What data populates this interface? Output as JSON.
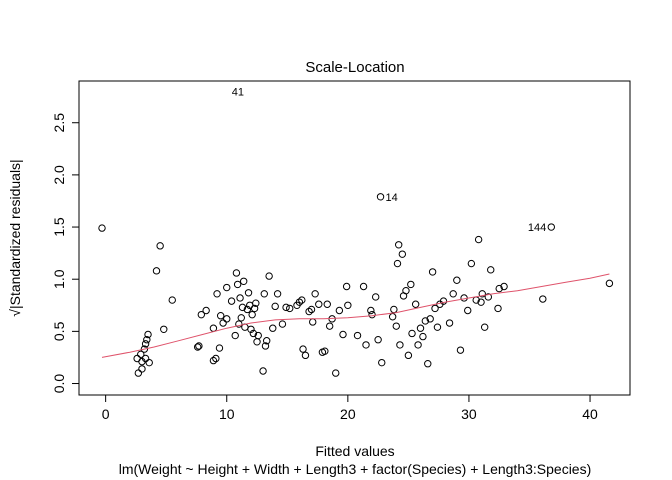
{
  "chart_data": {
    "type": "scatter",
    "title": "Scale-Location",
    "xlabel": "Fitted values",
    "ylabel": "√|Standardized residuals|",
    "subtitle": "lm(Weight ~ Height + Width + Length3 + factor(Species) + Length3:Species)",
    "xlim": [
      -2.2,
      43.3
    ],
    "ylim": [
      -0.11,
      2.9
    ],
    "xticks": [
      0,
      10,
      20,
      30,
      40
    ],
    "yticks": [
      0.0,
      0.5,
      1.0,
      1.5,
      2.0,
      2.5
    ],
    "colors": {
      "points": "#000000",
      "smooth": "#DF536B"
    },
    "points": [
      [
        -0.3,
        1.49
      ],
      [
        2.6,
        0.24
      ],
      [
        2.7,
        0.1
      ],
      [
        2.9,
        0.28
      ],
      [
        3.0,
        0.14
      ],
      [
        3.0,
        0.21
      ],
      [
        3.2,
        0.33
      ],
      [
        3.3,
        0.24
      ],
      [
        3.3,
        0.38
      ],
      [
        3.4,
        0.42
      ],
      [
        3.5,
        0.47
      ],
      [
        3.6,
        0.2
      ],
      [
        4.2,
        1.08
      ],
      [
        4.5,
        1.32
      ],
      [
        4.8,
        0.52
      ],
      [
        5.5,
        0.8
      ],
      [
        7.6,
        0.35
      ],
      [
        7.7,
        0.36
      ],
      [
        7.9,
        0.66
      ],
      [
        8.3,
        0.7
      ],
      [
        8.9,
        0.53
      ],
      [
        8.9,
        0.22
      ],
      [
        9.1,
        0.24
      ],
      [
        9.2,
        0.86
      ],
      [
        9.4,
        0.34
      ],
      [
        9.5,
        0.65
      ],
      [
        9.7,
        0.58
      ],
      [
        10.0,
        0.92
      ],
      [
        10.0,
        0.62
      ],
      [
        10.4,
        0.79
      ],
      [
        10.7,
        0.46
      ],
      [
        10.8,
        1.06
      ],
      [
        10.9,
        0.95
      ],
      [
        11.0,
        0.57
      ],
      [
        11.1,
        0.82
      ],
      [
        11.2,
        0.63
      ],
      [
        11.3,
        0.73
      ],
      [
        11.4,
        0.98
      ],
      [
        11.5,
        0.54
      ],
      [
        11.7,
        0.71
      ],
      [
        11.8,
        0.87
      ],
      [
        11.9,
        0.75
      ],
      [
        12.0,
        0.52
      ],
      [
        12.1,
        0.66
      ],
      [
        12.2,
        0.48
      ],
      [
        12.3,
        0.72
      ],
      [
        12.4,
        0.77
      ],
      [
        12.5,
        0.4
      ],
      [
        12.6,
        0.46
      ],
      [
        13.0,
        0.12
      ],
      [
        13.1,
        0.86
      ],
      [
        13.2,
        0.36
      ],
      [
        13.3,
        0.41
      ],
      [
        13.5,
        1.03
      ],
      [
        13.8,
        0.53
      ],
      [
        14.0,
        0.74
      ],
      [
        14.2,
        0.86
      ],
      [
        14.6,
        0.57
      ],
      [
        14.9,
        0.73
      ],
      [
        15.2,
        0.72
      ],
      [
        15.8,
        0.75
      ],
      [
        16.0,
        0.78
      ],
      [
        16.2,
        0.8
      ],
      [
        16.3,
        0.33
      ],
      [
        16.5,
        0.27
      ],
      [
        16.8,
        0.69
      ],
      [
        17.0,
        0.71
      ],
      [
        17.1,
        0.59
      ],
      [
        17.3,
        0.86
      ],
      [
        17.6,
        0.76
      ],
      [
        17.9,
        0.3
      ],
      [
        18.1,
        0.31
      ],
      [
        18.3,
        0.76
      ],
      [
        18.5,
        0.55
      ],
      [
        18.7,
        0.62
      ],
      [
        19.0,
        0.1
      ],
      [
        19.3,
        0.7
      ],
      [
        19.6,
        0.47
      ],
      [
        19.9,
        0.93
      ],
      [
        20.0,
        0.75
      ],
      [
        20.8,
        0.46
      ],
      [
        21.3,
        0.93
      ],
      [
        21.5,
        0.37
      ],
      [
        21.9,
        0.7
      ],
      [
        22.0,
        0.66
      ],
      [
        22.3,
        0.83
      ],
      [
        22.5,
        0.42
      ],
      [
        22.7,
        1.79
      ],
      [
        22.8,
        0.2
      ],
      [
        23.7,
        0.64
      ],
      [
        23.8,
        0.71
      ],
      [
        24.0,
        0.55
      ],
      [
        24.1,
        1.15
      ],
      [
        24.2,
        1.33
      ],
      [
        24.3,
        0.37
      ],
      [
        24.5,
        1.24
      ],
      [
        24.6,
        0.84
      ],
      [
        24.8,
        0.89
      ],
      [
        25.0,
        0.27
      ],
      [
        25.2,
        0.95
      ],
      [
        25.3,
        0.48
      ],
      [
        25.6,
        0.76
      ],
      [
        25.8,
        0.37
      ],
      [
        26.0,
        0.53
      ],
      [
        26.2,
        0.45
      ],
      [
        26.4,
        0.6
      ],
      [
        26.6,
        0.19
      ],
      [
        26.8,
        0.62
      ],
      [
        27.0,
        1.07
      ],
      [
        27.2,
        0.72
      ],
      [
        27.4,
        0.54
      ],
      [
        27.6,
        0.76
      ],
      [
        27.9,
        0.79
      ],
      [
        28.4,
        0.58
      ],
      [
        28.7,
        0.86
      ],
      [
        29.0,
        0.99
      ],
      [
        29.3,
        0.32
      ],
      [
        29.6,
        0.82
      ],
      [
        29.9,
        0.7
      ],
      [
        30.2,
        1.15
      ],
      [
        30.6,
        0.8
      ],
      [
        30.8,
        1.38
      ],
      [
        31.0,
        0.78
      ],
      [
        31.1,
        0.86
      ],
      [
        31.3,
        0.54
      ],
      [
        31.6,
        0.83
      ],
      [
        31.8,
        1.09
      ],
      [
        32.4,
        0.72
      ],
      [
        32.5,
        0.91
      ],
      [
        32.9,
        0.93
      ],
      [
        36.1,
        0.81
      ],
      [
        36.8,
        1.5
      ],
      [
        41.6,
        0.96
      ]
    ],
    "smooth": [
      [
        -0.3,
        0.25
      ],
      [
        2.0,
        0.3
      ],
      [
        4.0,
        0.35
      ],
      [
        6.0,
        0.41
      ],
      [
        8.0,
        0.47
      ],
      [
        10.0,
        0.53
      ],
      [
        12.0,
        0.58
      ],
      [
        14.0,
        0.61
      ],
      [
        16.0,
        0.62
      ],
      [
        18.0,
        0.62
      ],
      [
        20.0,
        0.63
      ],
      [
        22.0,
        0.65
      ],
      [
        24.0,
        0.68
      ],
      [
        26.0,
        0.73
      ],
      [
        28.0,
        0.78
      ],
      [
        30.0,
        0.82
      ],
      [
        32.0,
        0.86
      ],
      [
        34.0,
        0.89
      ],
      [
        36.0,
        0.93
      ],
      [
        38.0,
        0.97
      ],
      [
        40.0,
        1.01
      ],
      [
        41.6,
        1.05
      ]
    ],
    "annotations": [
      {
        "label": "41",
        "x": 10.0,
        "y": 2.8,
        "side": "right"
      },
      {
        "label": "14",
        "x": 22.7,
        "y": 1.79,
        "side": "right"
      },
      {
        "label": "144",
        "x": 36.8,
        "y": 1.5,
        "side": "left"
      }
    ]
  }
}
